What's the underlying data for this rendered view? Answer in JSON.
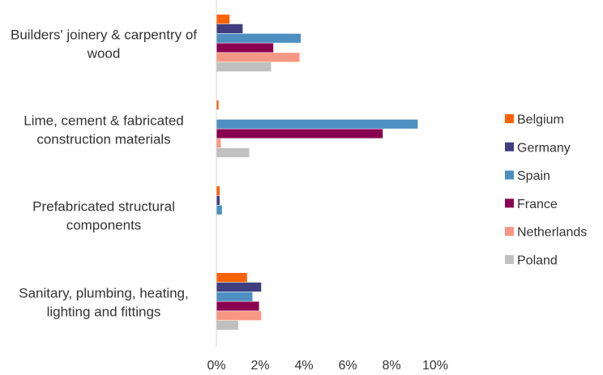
{
  "chart_data": {
    "type": "bar",
    "orientation": "horizontal",
    "title": "",
    "xlabel": "",
    "ylabel": "",
    "xlim": [
      0,
      10
    ],
    "xticks": [
      "0%",
      "2%",
      "4%",
      "6%",
      "8%",
      "10%"
    ],
    "grid": false,
    "legend_position": "right",
    "categories": [
      [
        "Builders' joinery & carpentry of",
        "wood"
      ],
      [
        "Lime, cement & fabricated",
        "construction materials"
      ],
      [
        "Prefabricated structural",
        "components"
      ],
      [
        "Sanitary, plumbing, heating,",
        "lighting and fittings"
      ]
    ],
    "series": [
      {
        "name": "Belgium",
        "color": "#FF6200",
        "values": [
          0.6,
          0.1,
          0.15,
          1.4
        ]
      },
      {
        "name": "Germany",
        "color": "#3F3F7F",
        "values": [
          1.2,
          0.0,
          0.15,
          2.05
        ]
      },
      {
        "name": "Spain",
        "color": "#4C8FC0",
        "values": [
          3.85,
          9.2,
          0.25,
          1.65
        ]
      },
      {
        "name": "France",
        "color": "#8A0050",
        "values": [
          2.6,
          7.6,
          0.0,
          1.95
        ]
      },
      {
        "name": "Netherlands",
        "color": "#F69783",
        "values": [
          3.8,
          0.2,
          0.0,
          2.05
        ]
      },
      {
        "name": "Poland",
        "color": "#C0C0C0",
        "values": [
          2.5,
          1.5,
          0.0,
          1.0
        ]
      }
    ]
  }
}
